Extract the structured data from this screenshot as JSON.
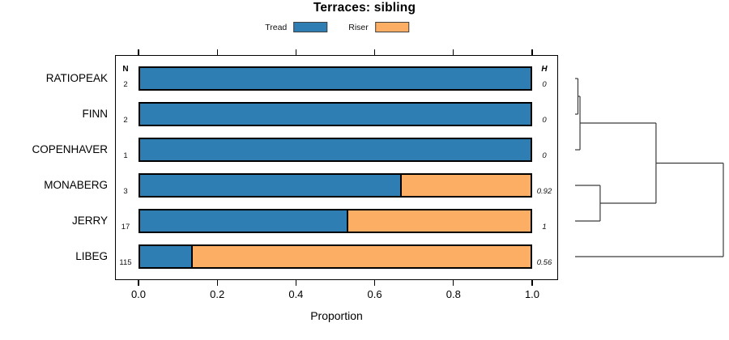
{
  "figure": {
    "title": "Terraces: sibling",
    "xlabel": "Proportion"
  },
  "legend": {
    "position": "top",
    "items": [
      {
        "label": "Tread",
        "color": "#2E7EB3"
      },
      {
        "label": "Riser",
        "color": "#FBAE64"
      }
    ]
  },
  "columns": {
    "n_header": "N",
    "h_header": "H"
  },
  "chart_data": {
    "type": "bar",
    "orientation": "horizontal-stacked",
    "title": "Terraces: sibling",
    "xlabel": "Proportion",
    "ylabel": "",
    "xlim": [
      0.0,
      1.0
    ],
    "x_ticks": [
      "0.0",
      "0.2",
      "0.4",
      "0.6",
      "0.8",
      "1.0"
    ],
    "grid": false,
    "legend_entries": [
      "Tread",
      "Riser"
    ],
    "categories": [
      "RATIOPEAK",
      "FINN",
      "COPENHAVER",
      "MONABERG",
      "JERRY",
      "LIBEG"
    ],
    "series": [
      {
        "name": "Tread",
        "color": "#2E7EB3",
        "values": [
          1.0,
          1.0,
          1.0,
          0.667,
          0.529,
          0.13
        ]
      },
      {
        "name": "Riser",
        "color": "#FBAE64",
        "values": [
          0.0,
          0.0,
          0.0,
          0.333,
          0.471,
          0.87
        ]
      }
    ],
    "n_values": [
      "2",
      "2",
      "1",
      "3",
      "17",
      "115"
    ],
    "h_values": [
      "0",
      "0",
      "0",
      "0.92",
      "1",
      "0.56"
    ],
    "dendrogram": {
      "side": "right",
      "leaf_order": [
        "RATIOPEAK",
        "FINN",
        "COPENHAVER",
        "MONABERG",
        "JERRY",
        "LIBEG"
      ],
      "merges": [
        {
          "children": [
            "leaf:0",
            "leaf:1"
          ],
          "height": 0.019
        },
        {
          "children": [
            "node:0",
            "leaf:2"
          ],
          "height": 0.033
        },
        {
          "children": [
            "leaf:3",
            "leaf:4"
          ],
          "height": 0.169
        },
        {
          "children": [
            "node:1",
            "node:2"
          ],
          "height": 0.546
        },
        {
          "children": [
            "node:3",
            "leaf:5"
          ],
          "height": 1.0
        }
      ]
    }
  }
}
